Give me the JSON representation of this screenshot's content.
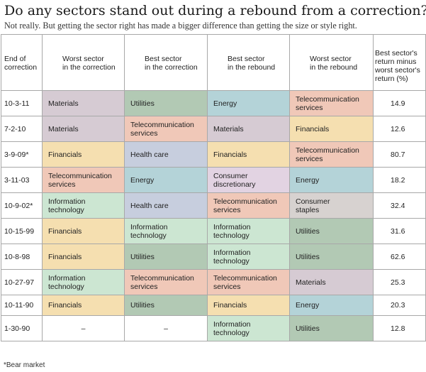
{
  "title": "Do any sectors stand out during a rebound from a correction?",
  "subtitle": "Not really. But getting the sector right has made a bigger difference than getting the size or style right.",
  "columns": [
    "End of\ncorrection",
    "Worst sector\nin the correction",
    "Best sector\nin the correction",
    "Best sector\nin the rebound",
    "Worst sector\nin the rebound",
    "Best sector's\nreturn minus\nworst sector's\nreturn (%)"
  ],
  "sector_colors": {
    "Materials": "#d6cbd3",
    "Utilities": "#b2c9b4",
    "Energy": "#b4d3d8",
    "Telecommunication services": "#f0c8b8",
    "Financials": "#f5dfb0",
    "Health care": "#c7cede",
    "Consumer discretionary": "#e2d3e2",
    "Information technology": "#cce6d2",
    "Consumer staples": "#d7d2d0"
  },
  "rows": [
    {
      "date": "10-3-11",
      "worst_corr": "Materials",
      "best_corr": "Utilities",
      "best_reb": "Energy",
      "worst_reb": "Telecommunication\nservices",
      "diff": "14.9"
    },
    {
      "date": "7-2-10",
      "worst_corr": "Materials",
      "best_corr": "Telecommunication\nservices",
      "best_reb": "Materials",
      "worst_reb": "Financials",
      "diff": "12.6"
    },
    {
      "date": "3-9-09*",
      "worst_corr": "Financials",
      "best_corr": "Health care",
      "best_reb": "Financials",
      "worst_reb": "Telecommunication\nservices",
      "diff": "80.7"
    },
    {
      "date": "3-11-03",
      "worst_corr": "Telecommunication\nservices",
      "best_corr": "Energy",
      "best_reb": "Consumer\ndiscretionary",
      "worst_reb": "Energy",
      "diff": "18.2"
    },
    {
      "date": "10-9-02*",
      "worst_corr": "Information\ntechnology",
      "best_corr": "Health care",
      "best_reb": "Telecommunication\nservices",
      "worst_reb": "Consumer\nstaples",
      "diff": "32.4"
    },
    {
      "date": "10-15-99",
      "worst_corr": "Financials",
      "best_corr": "Information\ntechnology",
      "best_reb": "Information\ntechnology",
      "worst_reb": "Utilities",
      "diff": "31.6"
    },
    {
      "date": "10-8-98",
      "worst_corr": "Financials",
      "best_corr": "Utilities",
      "best_reb": "Information\ntechnology",
      "worst_reb": "Utilities",
      "diff": "62.6"
    },
    {
      "date": "10-27-97",
      "worst_corr": "Information\ntechnology",
      "best_corr": "Telecommunication\nservices",
      "best_reb": "Telecommunication\nservices",
      "worst_reb": "Materials",
      "diff": "25.3"
    },
    {
      "date": "10-11-90",
      "worst_corr": "Financials",
      "best_corr": "Utilities",
      "best_reb": "Financials",
      "worst_reb": "Energy",
      "diff": "20.3"
    },
    {
      "date": "1-30-90",
      "worst_corr": "–",
      "best_corr": "–",
      "best_reb": "Information\ntechnology",
      "worst_reb": "Utilities",
      "diff": "12.8"
    }
  ],
  "footnote": "*Bear market"
}
